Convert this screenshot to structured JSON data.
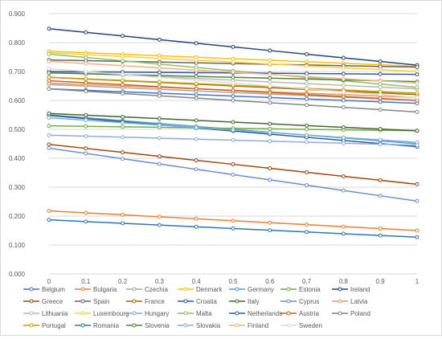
{
  "chart_data": {
    "type": "line",
    "x": [
      0,
      0.1,
      0.2,
      0.3,
      0.4,
      0.5,
      0.6,
      0.7,
      0.8,
      0.9,
      1
    ],
    "x_tick_labels": [
      "0",
      "0.1",
      "0.2",
      "0.3",
      "0.4",
      "0.5",
      "0.6",
      "0.7",
      "0.8",
      "0.9",
      "1"
    ],
    "ylim": [
      0,
      0.9
    ],
    "y_ticks": [
      0,
      0.1,
      0.2,
      0.3,
      0.4,
      0.5,
      0.6,
      0.7,
      0.8,
      0.9
    ],
    "y_tick_labels": [
      "0.000",
      "0.100",
      "0.200",
      "0.300",
      "0.400",
      "0.500",
      "0.600",
      "0.700",
      "0.800",
      "0.900"
    ],
    "grid": "horizontal",
    "legend_position": "bottom",
    "series": [
      {
        "name": "Belgium",
        "color": "#4472c4",
        "start": 0.64,
        "end": 0.59
      },
      {
        "name": "Bulgaria",
        "color": "#ed7d31",
        "start": 0.218,
        "end": 0.15
      },
      {
        "name": "Czechia",
        "color": "#a5a5a5",
        "start": 0.655,
        "end": 0.6
      },
      {
        "name": "Denmark",
        "color": "#ffc000",
        "start": 0.77,
        "end": 0.718
      },
      {
        "name": "Germany",
        "color": "#5b9bd5",
        "start": 0.55,
        "end": 0.45
      },
      {
        "name": "Estonia",
        "color": "#70ad47",
        "start": 0.512,
        "end": 0.495
      },
      {
        "name": "Ireland",
        "color": "#264478",
        "start": 0.848,
        "end": 0.722
      },
      {
        "name": "Greece",
        "color": "#9e480e",
        "start": 0.448,
        "end": 0.31
      },
      {
        "name": "Spain",
        "color": "#636363",
        "start": 0.74,
        "end": 0.715
      },
      {
        "name": "France",
        "color": "#997300",
        "start": 0.68,
        "end": 0.62
      },
      {
        "name": "Croatia",
        "color": "#255e91",
        "start": 0.548,
        "end": 0.44
      },
      {
        "name": "Italy",
        "color": "#43682b",
        "start": 0.555,
        "end": 0.495
      },
      {
        "name": "Cyprus",
        "color": "#698ed0",
        "start": 0.435,
        "end": 0.252
      },
      {
        "name": "Latvia",
        "color": "#f1975a",
        "start": 0.66,
        "end": 0.61
      },
      {
        "name": "Lithuania",
        "color": "#b7b7b7",
        "start": 0.7,
        "end": 0.64
      },
      {
        "name": "Luxembourg",
        "color": "#ffcd33",
        "start": 0.765,
        "end": 0.7
      },
      {
        "name": "Hungary",
        "color": "#7cafdd",
        "start": 0.54,
        "end": 0.455
      },
      {
        "name": "Malta",
        "color": "#8cc168",
        "start": 0.76,
        "end": 0.645
      },
      {
        "name": "Netherlands",
        "color": "#335aa1",
        "start": 0.7,
        "end": 0.69
      },
      {
        "name": "Austria",
        "color": "#d26012",
        "start": 0.668,
        "end": 0.6
      },
      {
        "name": "Poland",
        "color": "#848484",
        "start": 0.64,
        "end": 0.56
      },
      {
        "name": "Portugal",
        "color": "#cc9a00",
        "start": 0.68,
        "end": 0.625
      },
      {
        "name": "Romania",
        "color": "#2e75b6",
        "start": 0.187,
        "end": 0.127
      },
      {
        "name": "Slovenia",
        "color": "#548235",
        "start": 0.695,
        "end": 0.665
      },
      {
        "name": "Slovakia",
        "color": "#8faadc",
        "start": 0.48,
        "end": 0.445
      },
      {
        "name": "Finland",
        "color": "#f4b183",
        "start": 0.735,
        "end": 0.66
      },
      {
        "name": "Sweden",
        "color": "#d9d9d9",
        "start": 0.71,
        "end": 0.61
      }
    ]
  }
}
